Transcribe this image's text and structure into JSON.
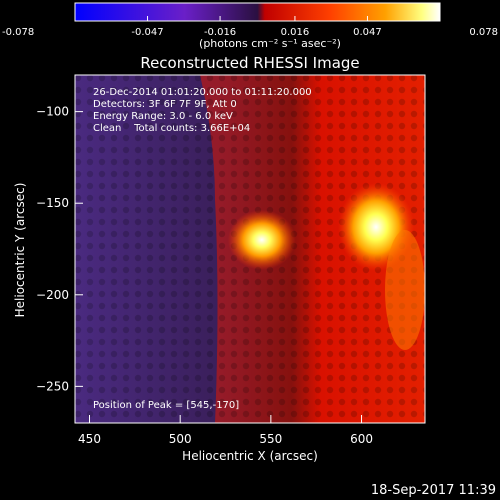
{
  "colorbar": {
    "ticks": [
      {
        "value": -0.078,
        "label": "-0.078"
      },
      {
        "value": -0.047,
        "label": "-0.047"
      },
      {
        "value": -0.016,
        "label": "-0.016"
      },
      {
        "value": 0.016,
        "label": "0.016"
      },
      {
        "value": 0.047,
        "label": "0.047"
      },
      {
        "value": 0.078,
        "label": "0.078"
      }
    ],
    "range": [
      -0.078,
      0.078
    ],
    "unit_label": "(photons cm⁻² s⁻¹ asec⁻²)",
    "colors": [
      "#0000ff",
      "#6a1fc8",
      "#3a1a5a",
      "#ff1a00",
      "#ff8a00",
      "#ffff80",
      "#ffffff"
    ]
  },
  "image": {
    "title": "Reconstructed RHESSI Image",
    "info_lines": [
      "26-Dec-2014 01:01:20.000 to 01:11:20.000",
      "Detectors: 3F 6F 7F 9F, Att 0",
      "Energy Range: 3.0 - 6.0 keV",
      "Clean    Total counts: 3.66E+04"
    ],
    "peak_label": "Position of Peak = [545,-170]",
    "xlabel": "Heliocentric X (arcsec)",
    "ylabel": "Heliocentric Y (arcsec)",
    "xlim": [
      442,
      635
    ],
    "ylim": [
      -270,
      -80
    ],
    "xticks": [
      450,
      500,
      550,
      600
    ],
    "yticks": [
      -100,
      -150,
      -200,
      -250
    ],
    "sources": [
      {
        "x": 545,
        "y": -170
      },
      {
        "x": 608,
        "y": -163
      }
    ]
  },
  "footer": {
    "timestamp": "18-Sep-2017 11:39"
  }
}
